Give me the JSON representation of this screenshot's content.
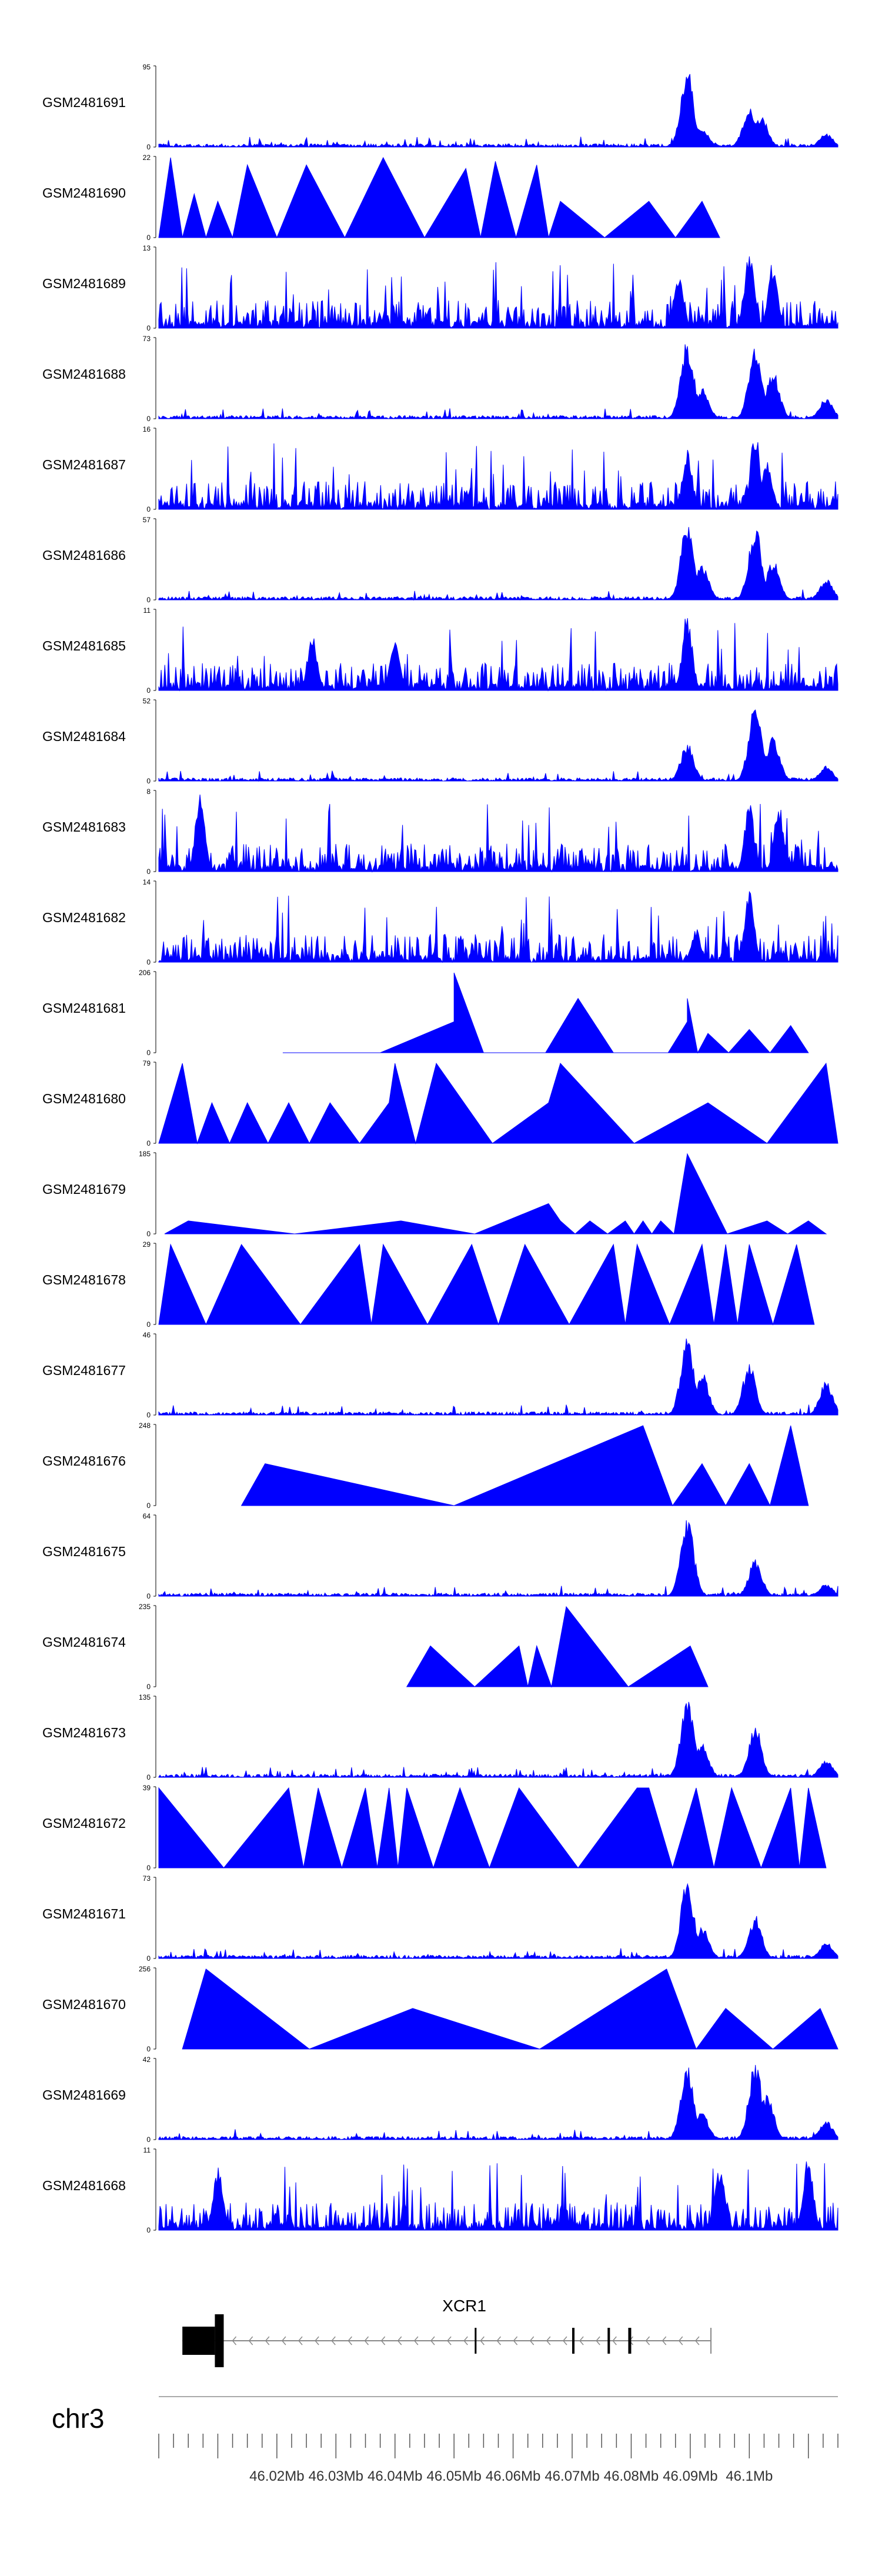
{
  "chart_data": {
    "type": "area",
    "title": "",
    "chromosome": "chr3",
    "x_range_mb": [
      46.0,
      46.115
    ],
    "x_ticks": [
      "46.02Mb",
      "46.03Mb",
      "46.04Mb",
      "46.05Mb",
      "46.06Mb",
      "46.07Mb",
      "46.08Mb",
      "46.09Mb",
      "46.1Mb"
    ],
    "x_tick_values_mb": [
      46.02,
      46.03,
      46.04,
      46.05,
      46.06,
      46.07,
      46.08,
      46.09,
      46.1
    ],
    "fill_color": "#0000ff",
    "series": [
      {
        "name": "GSM2481691",
        "ymax": 95,
        "profile": "peaks",
        "peaks": [
          [
            46.0895,
            95
          ],
          [
            46.092,
            25
          ],
          [
            46.1,
            50
          ],
          [
            46.102,
            40
          ],
          [
            46.113,
            16
          ]
        ]
      },
      {
        "name": "GSM2481690",
        "ymax": 22,
        "profile": "triangles",
        "peaks": [
          [
            46.002,
            22
          ],
          [
            46.006,
            12
          ],
          [
            46.01,
            10
          ],
          [
            46.015,
            20
          ],
          [
            46.025,
            20
          ],
          [
            46.038,
            22
          ],
          [
            46.052,
            19
          ],
          [
            46.057,
            21
          ],
          [
            46.064,
            20
          ],
          [
            46.068,
            10
          ],
          [
            46.083,
            10
          ],
          [
            46.092,
            10
          ]
        ]
      },
      {
        "name": "GSM2481689",
        "ymax": 13,
        "profile": "dense",
        "peaks": [
          [
            46.088,
            9
          ],
          [
            46.1,
            13
          ],
          [
            46.104,
            11
          ]
        ]
      },
      {
        "name": "GSM2481688",
        "ymax": 73,
        "profile": "peaks",
        "peaks": [
          [
            46.0895,
            73
          ],
          [
            46.092,
            30
          ],
          [
            46.101,
            70
          ],
          [
            46.104,
            45
          ],
          [
            46.113,
            20
          ]
        ]
      },
      {
        "name": "GSM2481687",
        "ymax": 16,
        "profile": "dense",
        "peaks": [
          [
            46.0895,
            12
          ],
          [
            46.101,
            16
          ],
          [
            46.103,
            11
          ]
        ]
      },
      {
        "name": "GSM2481686",
        "ymax": 57,
        "profile": "peaks",
        "peaks": [
          [
            46.0895,
            57
          ],
          [
            46.092,
            25
          ],
          [
            46.101,
            55
          ],
          [
            46.104,
            30
          ],
          [
            46.113,
            15
          ]
        ]
      },
      {
        "name": "GSM2481685",
        "ymax": 11,
        "profile": "dense",
        "peaks": [
          [
            46.0895,
            11
          ],
          [
            46.026,
            8
          ],
          [
            46.04,
            7
          ],
          [
            46.04,
            7
          ]
        ]
      },
      {
        "name": "GSM2481684",
        "ymax": 52,
        "profile": "peaks",
        "peaks": [
          [
            46.0895,
            25
          ],
          [
            46.101,
            52
          ],
          [
            46.104,
            30
          ],
          [
            46.113,
            10
          ]
        ]
      },
      {
        "name": "GSM2481683",
        "ymax": 8,
        "profile": "dense",
        "peaks": [
          [
            46.007,
            8
          ],
          [
            46.1,
            7
          ],
          [
            46.105,
            7
          ]
        ]
      },
      {
        "name": "GSM2481682",
        "ymax": 14,
        "profile": "dense",
        "peaks": [
          [
            46.1,
            14
          ],
          [
            46.091,
            6
          ]
        ]
      },
      {
        "name": "GSM2481681",
        "ymax": 206,
        "profile": "triangles",
        "peaks": [
          [
            46.025,
            0
          ],
          [
            46.05,
            80
          ],
          [
            46.05,
            206
          ],
          [
            46.06,
            0
          ],
          [
            46.071,
            140
          ],
          [
            46.083,
            0
          ],
          [
            46.0895,
            80
          ],
          [
            46.0895,
            140
          ],
          [
            46.093,
            50
          ],
          [
            46.1,
            60
          ],
          [
            46.107,
            70
          ]
        ]
      },
      {
        "name": "GSM2481680",
        "ymax": 79,
        "profile": "triangles",
        "peaks": [
          [
            46.004,
            79
          ],
          [
            46.009,
            40
          ],
          [
            46.015,
            40
          ],
          [
            46.022,
            40
          ],
          [
            46.029,
            40
          ],
          [
            46.039,
            40
          ],
          [
            46.04,
            79
          ],
          [
            46.047,
            79
          ],
          [
            46.066,
            40
          ],
          [
            46.068,
            79
          ],
          [
            46.093,
            40
          ],
          [
            46.113,
            79
          ]
        ]
      },
      {
        "name": "GSM2481679",
        "ymax": 185,
        "profile": "triangles",
        "peaks": [
          [
            46.005,
            30
          ],
          [
            46.041,
            30
          ],
          [
            46.066,
            70
          ],
          [
            46.068,
            30
          ],
          [
            46.073,
            30
          ],
          [
            46.079,
            30
          ],
          [
            46.082,
            30
          ],
          [
            46.085,
            30
          ],
          [
            46.0895,
            185
          ],
          [
            46.103,
            30
          ],
          [
            46.11,
            30
          ]
        ]
      },
      {
        "name": "GSM2481678",
        "ymax": 29,
        "profile": "triangles",
        "peaks": [
          [
            46.002,
            29
          ],
          [
            46.014,
            29
          ],
          [
            46.034,
            29
          ],
          [
            46.038,
            29
          ],
          [
            46.053,
            29
          ],
          [
            46.062,
            29
          ],
          [
            46.077,
            29
          ],
          [
            46.081,
            29
          ],
          [
            46.092,
            29
          ],
          [
            46.096,
            29
          ],
          [
            46.1,
            29
          ],
          [
            46.108,
            29
          ]
        ]
      },
      {
        "name": "GSM2481677",
        "ymax": 46,
        "profile": "peaks",
        "peaks": [
          [
            46.0895,
            46
          ],
          [
            46.092,
            25
          ],
          [
            46.1,
            30
          ],
          [
            46.113,
            20
          ]
        ]
      },
      {
        "name": "GSM2481676",
        "ymax": 248,
        "profile": "triangles",
        "peaks": [
          [
            46.018,
            130
          ],
          [
            46.082,
            248
          ],
          [
            46.092,
            130
          ],
          [
            46.1,
            130
          ],
          [
            46.107,
            248
          ]
        ]
      },
      {
        "name": "GSM2481675",
        "ymax": 64,
        "profile": "peaks",
        "peaks": [
          [
            46.0895,
            64
          ],
          [
            46.101,
            30
          ],
          [
            46.113,
            10
          ]
        ]
      },
      {
        "name": "GSM2481674",
        "ymax": 235,
        "profile": "triangles",
        "peaks": [
          [
            46.046,
            120
          ],
          [
            46.061,
            120
          ],
          [
            46.064,
            120
          ],
          [
            46.069,
            235
          ],
          [
            46.09,
            120
          ]
        ]
      },
      {
        "name": "GSM2481673",
        "ymax": 135,
        "profile": "peaks",
        "peaks": [
          [
            46.0895,
            135
          ],
          [
            46.092,
            60
          ],
          [
            46.101,
            90
          ],
          [
            46.113,
            30
          ]
        ]
      },
      {
        "name": "GSM2481672",
        "ymax": 39,
        "profile": "triangles",
        "peaks": [
          [
            46.0,
            39
          ],
          [
            46.022,
            39
          ],
          [
            46.027,
            39
          ],
          [
            46.035,
            39
          ],
          [
            46.039,
            39
          ],
          [
            46.042,
            39
          ],
          [
            46.051,
            39
          ],
          [
            46.061,
            39
          ],
          [
            46.081,
            39
          ],
          [
            46.083,
            39
          ],
          [
            46.091,
            39
          ],
          [
            46.097,
            39
          ],
          [
            46.107,
            39
          ],
          [
            46.11,
            39
          ]
        ]
      },
      {
        "name": "GSM2481671",
        "ymax": 73,
        "profile": "peaks",
        "peaks": [
          [
            46.0895,
            73
          ],
          [
            46.092,
            30
          ],
          [
            46.101,
            40
          ],
          [
            46.113,
            15
          ]
        ]
      },
      {
        "name": "GSM2481670",
        "ymax": 256,
        "profile": "triangles",
        "peaks": [
          [
            46.008,
            256
          ],
          [
            46.043,
            130
          ],
          [
            46.086,
            256
          ],
          [
            46.096,
            130
          ],
          [
            46.112,
            130
          ]
        ]
      },
      {
        "name": "GSM2481669",
        "ymax": 42,
        "profile": "peaks",
        "peaks": [
          [
            46.0895,
            42
          ],
          [
            46.092,
            15
          ],
          [
            46.101,
            42
          ],
          [
            46.103,
            25
          ],
          [
            46.113,
            10
          ]
        ]
      },
      {
        "name": "GSM2481668",
        "ymax": 11,
        "profile": "dense",
        "peaks": [
          [
            46.01,
            9
          ],
          [
            46.095,
            9
          ],
          [
            46.11,
            11
          ]
        ]
      }
    ],
    "gene": {
      "name": "XCR1",
      "strand": "-",
      "start_mb": 46.004,
      "end_mb": 46.0935,
      "exons_mb": [
        [
          46.004,
          46.0095
        ],
        [
          46.0095,
          46.011
        ],
        [
          46.0535,
          46.0538
        ],
        [
          46.07,
          46.0704
        ],
        [
          46.076,
          46.0764
        ],
        [
          46.0795,
          46.08
        ]
      ]
    }
  }
}
